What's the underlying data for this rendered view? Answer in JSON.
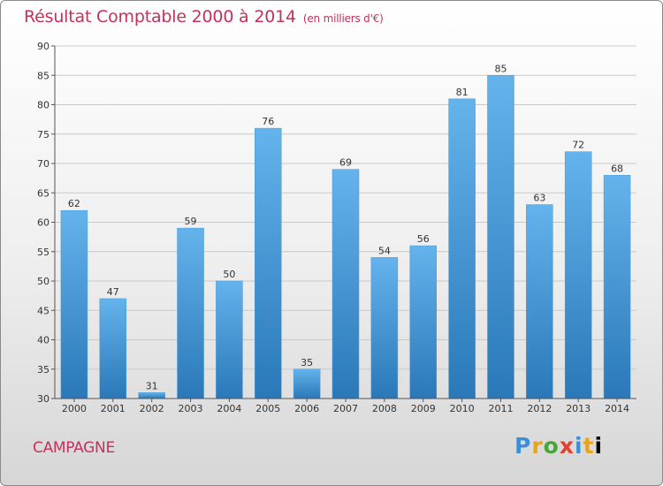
{
  "title": "Résultat Comptable 2000 à 2014",
  "subtitle": "(en milliers d'€)",
  "commune": "CAMPAGNE",
  "logo": [
    "P",
    "r",
    "o",
    "x",
    "i",
    "t",
    "i"
  ],
  "colors": {
    "bar_top": "#64b3ec",
    "bar_bottom": "#2a78b8",
    "title": "#c4325c",
    "grid": "#c9c9c9"
  },
  "chart_data": {
    "type": "bar",
    "title": "Résultat Comptable 2000 à 2014",
    "subtitle": "(en milliers d'€)",
    "categories": [
      "2000",
      "2001",
      "2002",
      "2003",
      "2004",
      "2005",
      "2006",
      "2007",
      "2008",
      "2009",
      "2010",
      "2011",
      "2012",
      "2013",
      "2014"
    ],
    "values": [
      62,
      47,
      31,
      59,
      50,
      76,
      35,
      69,
      54,
      56,
      81,
      85,
      63,
      72,
      68
    ],
    "ylim": [
      30,
      90
    ],
    "yticks": [
      30,
      35,
      40,
      45,
      50,
      55,
      60,
      65,
      70,
      75,
      80,
      85,
      90
    ],
    "grid": true,
    "data_labels": true
  }
}
